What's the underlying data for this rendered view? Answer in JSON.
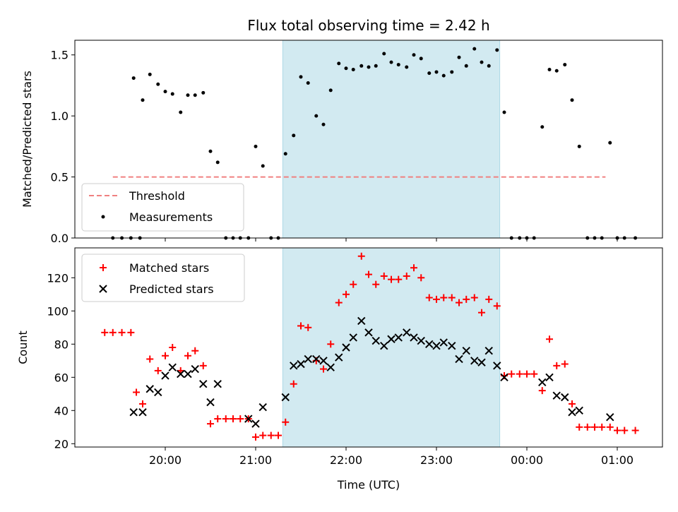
{
  "title": "Flux total observing time = 2.42 h",
  "colors": {
    "matched": "#ff0000",
    "predicted": "#000000",
    "threshold": "#f08080",
    "shade": "#add8e6"
  },
  "chart_data": [
    {
      "type": "scatter",
      "panel": "top",
      "ylabel": "Matched/Predicted stars",
      "xlabel": "",
      "ylim": [
        0,
        1.62
      ],
      "yticks": [
        0.0,
        0.5,
        1.0,
        1.5
      ],
      "ytick_labels": [
        "0.0",
        "0.5",
        "1.0",
        "1.5"
      ],
      "legend_placement": "lower-left",
      "threshold": {
        "name": "Threshold",
        "value": 0.5,
        "x_range": [
          19.42,
          0.87
        ]
      },
      "shaded_interval": [
        "21:18",
        "23:42"
      ],
      "series": [
        {
          "name": "Measurements",
          "x": [
            19.42,
            19.52,
            19.62,
            19.72,
            19.65,
            19.75,
            19.83,
            19.92,
            20.0,
            20.08,
            20.17,
            20.25,
            20.33,
            20.42,
            20.5,
            20.58,
            20.67,
            20.75,
            20.83,
            20.92,
            21.0,
            21.08,
            21.17,
            21.25,
            21.33,
            21.42,
            21.5,
            21.58,
            21.67,
            21.75,
            21.83,
            21.92,
            22.0,
            22.08,
            22.17,
            22.25,
            22.33,
            22.42,
            22.5,
            22.58,
            22.67,
            22.75,
            22.83,
            22.92,
            23.0,
            23.08,
            23.17,
            23.25,
            23.33,
            23.42,
            23.5,
            23.58,
            23.67,
            23.75,
            23.83,
            23.92,
            24.0,
            24.08,
            24.17,
            24.25,
            24.33,
            24.42,
            24.5,
            24.58,
            24.67,
            24.75,
            24.83,
            24.92,
            25.0,
            25.08,
            25.2
          ],
          "y": [
            0.0,
            0.0,
            0.0,
            0.0,
            1.31,
            1.13,
            1.34,
            1.26,
            1.2,
            1.18,
            1.03,
            1.17,
            1.17,
            1.19,
            0.71,
            0.62,
            0.0,
            0.0,
            0.0,
            0.0,
            0.75,
            0.59,
            0.0,
            0.0,
            0.69,
            0.84,
            1.32,
            1.27,
            1.0,
            0.93,
            1.21,
            1.43,
            1.39,
            1.38,
            1.41,
            1.4,
            1.41,
            1.51,
            1.44,
            1.42,
            1.4,
            1.5,
            1.47,
            1.35,
            1.36,
            1.33,
            1.36,
            1.48,
            1.41,
            1.55,
            1.44,
            1.41,
            1.54,
            1.03,
            0.0,
            0.0,
            0.0,
            0.0,
            0.91,
            1.38,
            1.37,
            1.42,
            1.13,
            0.75,
            0.0,
            0.0,
            0.0,
            0.78,
            0.0,
            0.0,
            0.0
          ]
        }
      ]
    },
    {
      "type": "scatter",
      "panel": "bottom",
      "ylabel": "Count",
      "xlabel": "Time (UTC)",
      "ylim": [
        18,
        138
      ],
      "yticks": [
        20,
        40,
        60,
        80,
        100,
        120
      ],
      "ytick_labels": [
        "20",
        "40",
        "60",
        "80",
        "100",
        "120"
      ],
      "xlim": [
        19.0,
        25.5
      ],
      "xticks": [
        20,
        21,
        22,
        23,
        24,
        25
      ],
      "xtick_labels": [
        "20:00",
        "21:00",
        "22:00",
        "23:00",
        "00:00",
        "01:00"
      ],
      "legend_placement": "top-left",
      "shaded_interval": [
        "21:18",
        "23:42"
      ],
      "series": [
        {
          "name": "Matched stars",
          "marker": "plus",
          "x": [
            19.33,
            19.42,
            19.52,
            19.62,
            19.68,
            19.75,
            19.83,
            19.92,
            20.0,
            20.08,
            20.17,
            20.25,
            20.33,
            20.42,
            20.5,
            20.58,
            20.67,
            20.75,
            20.83,
            20.92,
            21.0,
            21.08,
            21.17,
            21.25,
            21.33,
            21.42,
            21.5,
            21.58,
            21.67,
            21.75,
            21.83,
            21.92,
            22.0,
            22.08,
            22.17,
            22.25,
            22.33,
            22.42,
            22.5,
            22.58,
            22.67,
            22.75,
            22.83,
            22.92,
            23.0,
            23.08,
            23.17,
            23.25,
            23.33,
            23.42,
            23.5,
            23.58,
            23.67,
            23.75,
            23.83,
            23.92,
            24.0,
            24.08,
            24.17,
            24.25,
            24.33,
            24.42,
            24.5,
            24.58,
            24.67,
            24.75,
            24.83,
            24.92,
            25.0,
            25.08,
            25.2
          ],
          "y": [
            87,
            87,
            87,
            87,
            51,
            44,
            71,
            64,
            73,
            78,
            64,
            73,
            76,
            67,
            32,
            35,
            35,
            35,
            35,
            35,
            24,
            25,
            25,
            25,
            33,
            56,
            91,
            90,
            70,
            65,
            80,
            105,
            110,
            116,
            133,
            122,
            116,
            121,
            119,
            119,
            121,
            126,
            120,
            108,
            107,
            108,
            108,
            105,
            107,
            108,
            99,
            107,
            103,
            61,
            62,
            62,
            62,
            62,
            52,
            83,
            67,
            68,
            44,
            30,
            30,
            30,
            30,
            30,
            28,
            28,
            28
          ]
        },
        {
          "name": "Predicted stars",
          "marker": "x",
          "x": [
            19.65,
            19.75,
            19.83,
            19.92,
            20.0,
            20.08,
            20.17,
            20.25,
            20.33,
            20.42,
            20.5,
            20.58,
            20.92,
            21.0,
            21.08,
            21.33,
            21.42,
            21.5,
            21.58,
            21.67,
            21.75,
            21.83,
            21.92,
            22.0,
            22.08,
            22.17,
            22.25,
            22.33,
            22.42,
            22.5,
            22.58,
            22.67,
            22.75,
            22.83,
            22.92,
            23.0,
            23.08,
            23.17,
            23.25,
            23.33,
            23.42,
            23.5,
            23.58,
            23.67,
            23.75,
            24.17,
            24.25,
            24.33,
            24.42,
            24.5,
            24.58,
            24.92
          ],
          "y": [
            39,
            39,
            53,
            51,
            61,
            66,
            62,
            62,
            65,
            56,
            45,
            56,
            35,
            32,
            42,
            48,
            67,
            68,
            71,
            71,
            70,
            66,
            72,
            78,
            84,
            94,
            87,
            82,
            79,
            83,
            84,
            87,
            84,
            82,
            80,
            79,
            81,
            79,
            71,
            76,
            70,
            69,
            76,
            67,
            60,
            57,
            60,
            49,
            48,
            39,
            40,
            36
          ]
        }
      ]
    }
  ]
}
